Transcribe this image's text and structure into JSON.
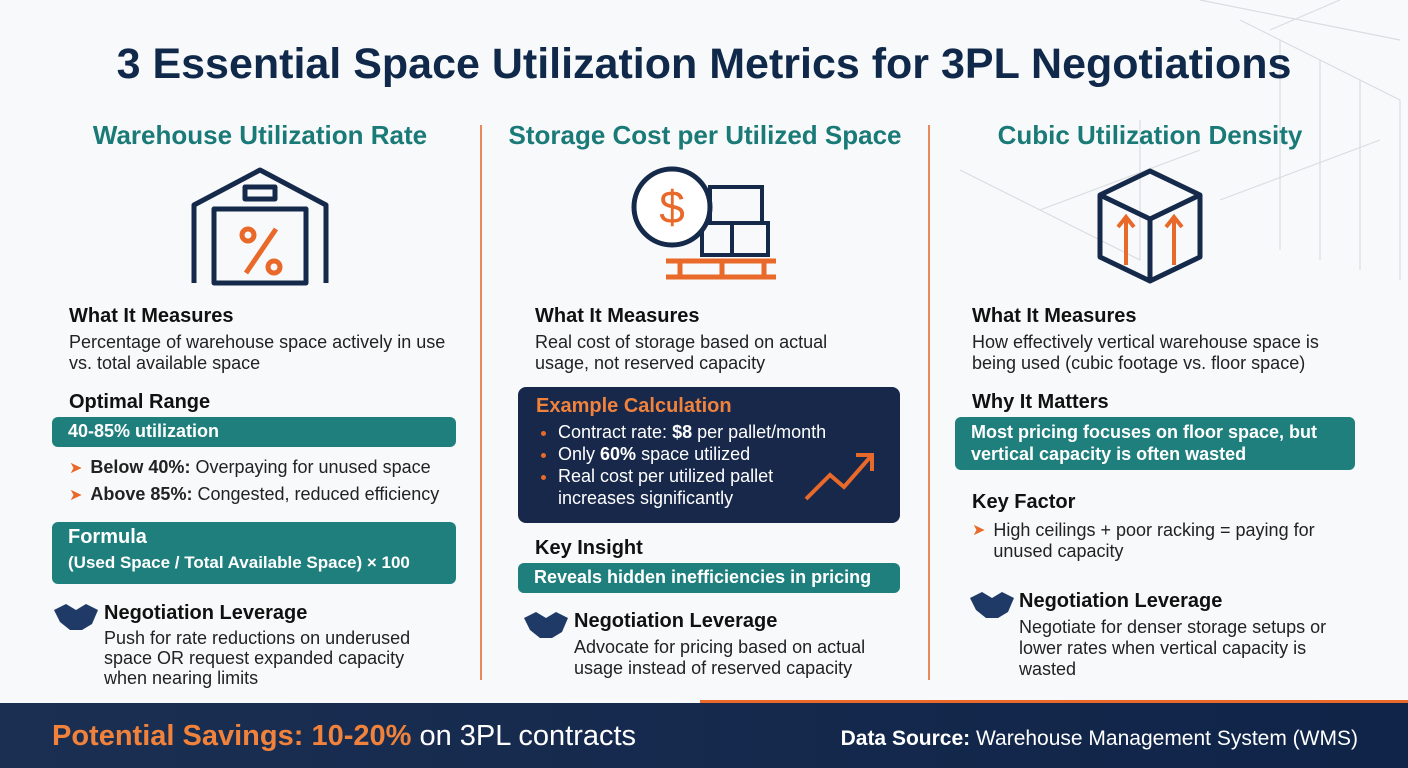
{
  "title": "3 Essential Space Utilization Metrics for 3PL Negotiations",
  "columns": [
    {
      "heading": "Warehouse Utilization Rate",
      "what_label": "What It Measures",
      "what_text": "Percentage of warehouse space actively in use vs. total available space",
      "range_label": "Optimal Range",
      "range_value": "40-85% utilization",
      "bullets": [
        {
          "bold": "Below 40%:",
          "text": "Overpaying for unused space"
        },
        {
          "bold": "Above 85%:",
          "text": "Congested, reduced efficiency"
        }
      ],
      "formula_label": "Formula",
      "formula": "(Used Space / Total Available Space) × 100",
      "leverage_label": "Negotiation Leverage",
      "leverage_text": "Push for rate reductions on underused space OR request expanded capacity when nearing limits"
    },
    {
      "heading": "Storage Cost per Utilized Space",
      "what_label": "What It Measures",
      "what_text": "Real cost of storage based on actual usage, not reserved capacity",
      "example_label": "Example Calculation",
      "example_items": [
        [
          "Contract rate:",
          "$8",
          "per pallet/month"
        ],
        [
          "Only",
          "60%",
          "space utilized"
        ],
        [
          "Real cost per utilized pallet increases significantly"
        ]
      ],
      "insight_label": "Key Insight",
      "insight_text": "Reveals hidden inefficiencies in pricing",
      "leverage_label": "Negotiation Leverage",
      "leverage_text": "Advocate for pricing based on actual usage instead of reserved capacity"
    },
    {
      "heading": "Cubic Utilization Density",
      "what_label": "What It Measures",
      "what_text": "How effectively vertical warehouse space is being used (cubic footage vs. floor space)",
      "why_label": "Why It Matters",
      "why_text": "Most pricing focuses on floor space, but vertical capacity is often wasted",
      "factor_label": "Key Factor",
      "factor_text": "High ceilings + poor racking = paying for unused capacity",
      "leverage_label": "Negotiation Leverage",
      "leverage_text": "Negotiate for denser storage setups or lower rates when vertical capacity is wasted"
    }
  ],
  "footer": {
    "savings_label": "Potential Savings:",
    "savings_value": "10-20%",
    "savings_suffix": "on 3PL contracts",
    "source_label": "Data Source:",
    "source_text": "Warehouse Management System (WMS)"
  }
}
